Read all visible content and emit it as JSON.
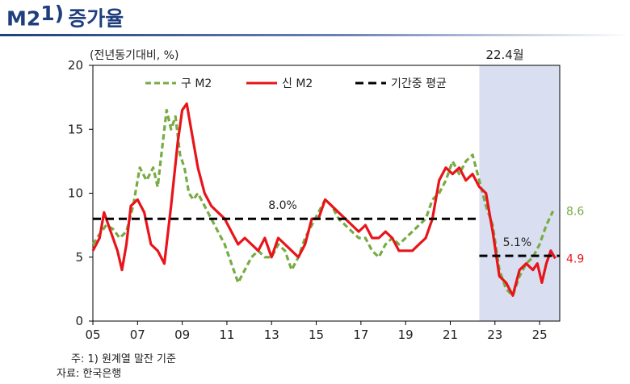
{
  "header": {
    "title": "M2",
    "title_sup": "1)",
    "title_suffix": "증가율"
  },
  "notes": [
    "주: 1) 원계열 말잔 기준",
    "자료: 한국은행"
  ],
  "chart_data": {
    "type": "line",
    "unit_label": "(전년동기대비, %)",
    "ylim": [
      0,
      20
    ],
    "yticks": [
      0,
      5,
      10,
      15,
      20
    ],
    "xlim": [
      2005,
      2025.9
    ],
    "xtick_values": [
      2005,
      2007,
      2009,
      2011,
      2013,
      2015,
      2017,
      2019,
      2021,
      2023,
      2025
    ],
    "xtick_labels": [
      "05",
      "07",
      "09",
      "11",
      "13",
      "15",
      "17",
      "19",
      "21",
      "23",
      "25"
    ],
    "shaded_region": {
      "from": 2022.3,
      "to": 2025.9,
      "label": "22.4월",
      "color": "#d9dff0"
    },
    "legend": {
      "position": "top",
      "entries": [
        "구 M2",
        "신 M2",
        "기간중 평균"
      ]
    },
    "series": [
      {
        "name": "구 M2",
        "color": "#77ab43",
        "style": "dashed",
        "x": [
          2005.0,
          2005.3,
          2005.6,
          2005.9,
          2006.2,
          2006.5,
          2006.8,
          2007.1,
          2007.4,
          2007.7,
          2007.9,
          2008.1,
          2008.3,
          2008.5,
          2008.7,
          2008.9,
          2009.1,
          2009.3,
          2009.5,
          2009.7,
          2010.0,
          2010.3,
          2010.6,
          2010.9,
          2011.2,
          2011.5,
          2011.8,
          2012.1,
          2012.4,
          2012.7,
          2013.0,
          2013.3,
          2013.6,
          2013.9,
          2014.2,
          2014.5,
          2014.8,
          2015.1,
          2015.4,
          2015.7,
          2016.0,
          2016.3,
          2016.6,
          2016.9,
          2017.2,
          2017.5,
          2017.8,
          2018.1,
          2018.4,
          2018.7,
          2019.0,
          2019.3,
          2019.6,
          2019.9,
          2020.2,
          2020.5,
          2020.8,
          2021.1,
          2021.4,
          2021.7,
          2022.0,
          2022.3,
          2022.6,
          2022.9,
          2023.2,
          2023.5,
          2023.8,
          2024.1,
          2024.4,
          2024.7,
          2025.0,
          2025.3,
          2025.6
        ],
        "values": [
          6.0,
          6.8,
          7.5,
          7.2,
          6.5,
          7.0,
          9.0,
          12.0,
          11.0,
          12.0,
          10.5,
          13.5,
          16.5,
          15.0,
          16.0,
          13.0,
          12.0,
          10.0,
          9.5,
          10.0,
          9.0,
          8.0,
          7.0,
          6.0,
          4.5,
          3.0,
          4.0,
          5.0,
          5.5,
          5.0,
          5.0,
          6.0,
          5.5,
          4.0,
          5.0,
          6.5,
          7.5,
          8.5,
          9.5,
          9.0,
          8.0,
          7.5,
          7.0,
          6.5,
          6.5,
          5.5,
          5.0,
          6.0,
          6.5,
          6.0,
          6.5,
          7.0,
          7.5,
          8.0,
          9.5,
          10.0,
          11.0,
          12.5,
          11.5,
          12.5,
          13.0,
          11.0,
          9.0,
          7.5,
          4.0,
          2.5,
          2.0,
          3.5,
          4.5,
          5.0,
          6.0,
          7.5,
          8.6
        ]
      },
      {
        "name": "신 M2",
        "color": "#e8141a",
        "style": "solid",
        "x": [
          2005.0,
          2005.3,
          2005.5,
          2005.8,
          2006.1,
          2006.3,
          2006.5,
          2006.7,
          2007.0,
          2007.3,
          2007.6,
          2007.9,
          2008.2,
          2008.5,
          2008.8,
          2009.0,
          2009.2,
          2009.4,
          2009.7,
          2010.0,
          2010.3,
          2010.6,
          2010.9,
          2011.2,
          2011.5,
          2011.8,
          2012.1,
          2012.4,
          2012.7,
          2013.0,
          2013.3,
          2013.6,
          2013.9,
          2014.2,
          2014.5,
          2014.8,
          2015.1,
          2015.4,
          2015.7,
          2016.0,
          2016.3,
          2016.6,
          2016.9,
          2017.2,
          2017.5,
          2017.8,
          2018.1,
          2018.4,
          2018.7,
          2019.0,
          2019.3,
          2019.6,
          2019.9,
          2020.2,
          2020.5,
          2020.8,
          2021.1,
          2021.4,
          2021.7,
          2022.0,
          2022.3,
          2022.6,
          2022.9,
          2023.2,
          2023.5,
          2023.8,
          2024.1,
          2024.4,
          2024.7,
          2024.9,
          2025.1,
          2025.3,
          2025.5,
          2025.7
        ],
        "values": [
          5.5,
          6.5,
          8.5,
          7.0,
          5.5,
          4.0,
          6.0,
          9.0,
          9.5,
          8.5,
          6.0,
          5.5,
          4.5,
          9.0,
          14.0,
          16.5,
          17.0,
          15.0,
          12.0,
          10.0,
          9.0,
          8.5,
          8.0,
          7.0,
          6.0,
          6.5,
          6.0,
          5.5,
          6.5,
          5.0,
          6.5,
          6.0,
          5.5,
          5.0,
          6.0,
          8.0,
          8.0,
          9.5,
          9.0,
          8.5,
          8.0,
          7.5,
          7.0,
          7.5,
          6.5,
          6.5,
          7.0,
          6.5,
          5.5,
          5.5,
          5.5,
          6.0,
          6.5,
          8.0,
          11.0,
          12.0,
          11.5,
          12.0,
          11.0,
          11.5,
          10.5,
          10.0,
          7.0,
          3.5,
          3.0,
          2.0,
          4.0,
          4.5,
          4.0,
          4.5,
          3.0,
          4.5,
          5.5,
          4.9
        ]
      },
      {
        "name": "기간중 평균",
        "color": "#000000",
        "style": "dashed-bold",
        "segments": [
          {
            "from": 2005.0,
            "to": 2022.3,
            "value": 8.0
          },
          {
            "from": 2022.3,
            "to": 2025.9,
            "value": 5.1
          }
        ]
      }
    ],
    "annotations": [
      {
        "text": "8.0%",
        "x": 2013.5,
        "y": 8.0
      },
      {
        "text": "5.1%",
        "x": 2024.0,
        "y": 5.1
      },
      {
        "text": "8.6",
        "x": 2025.9,
        "y": 8.6,
        "series": "구 M2"
      },
      {
        "text": "4.9",
        "x": 2025.9,
        "y": 4.9,
        "series": "신 M2"
      }
    ]
  }
}
